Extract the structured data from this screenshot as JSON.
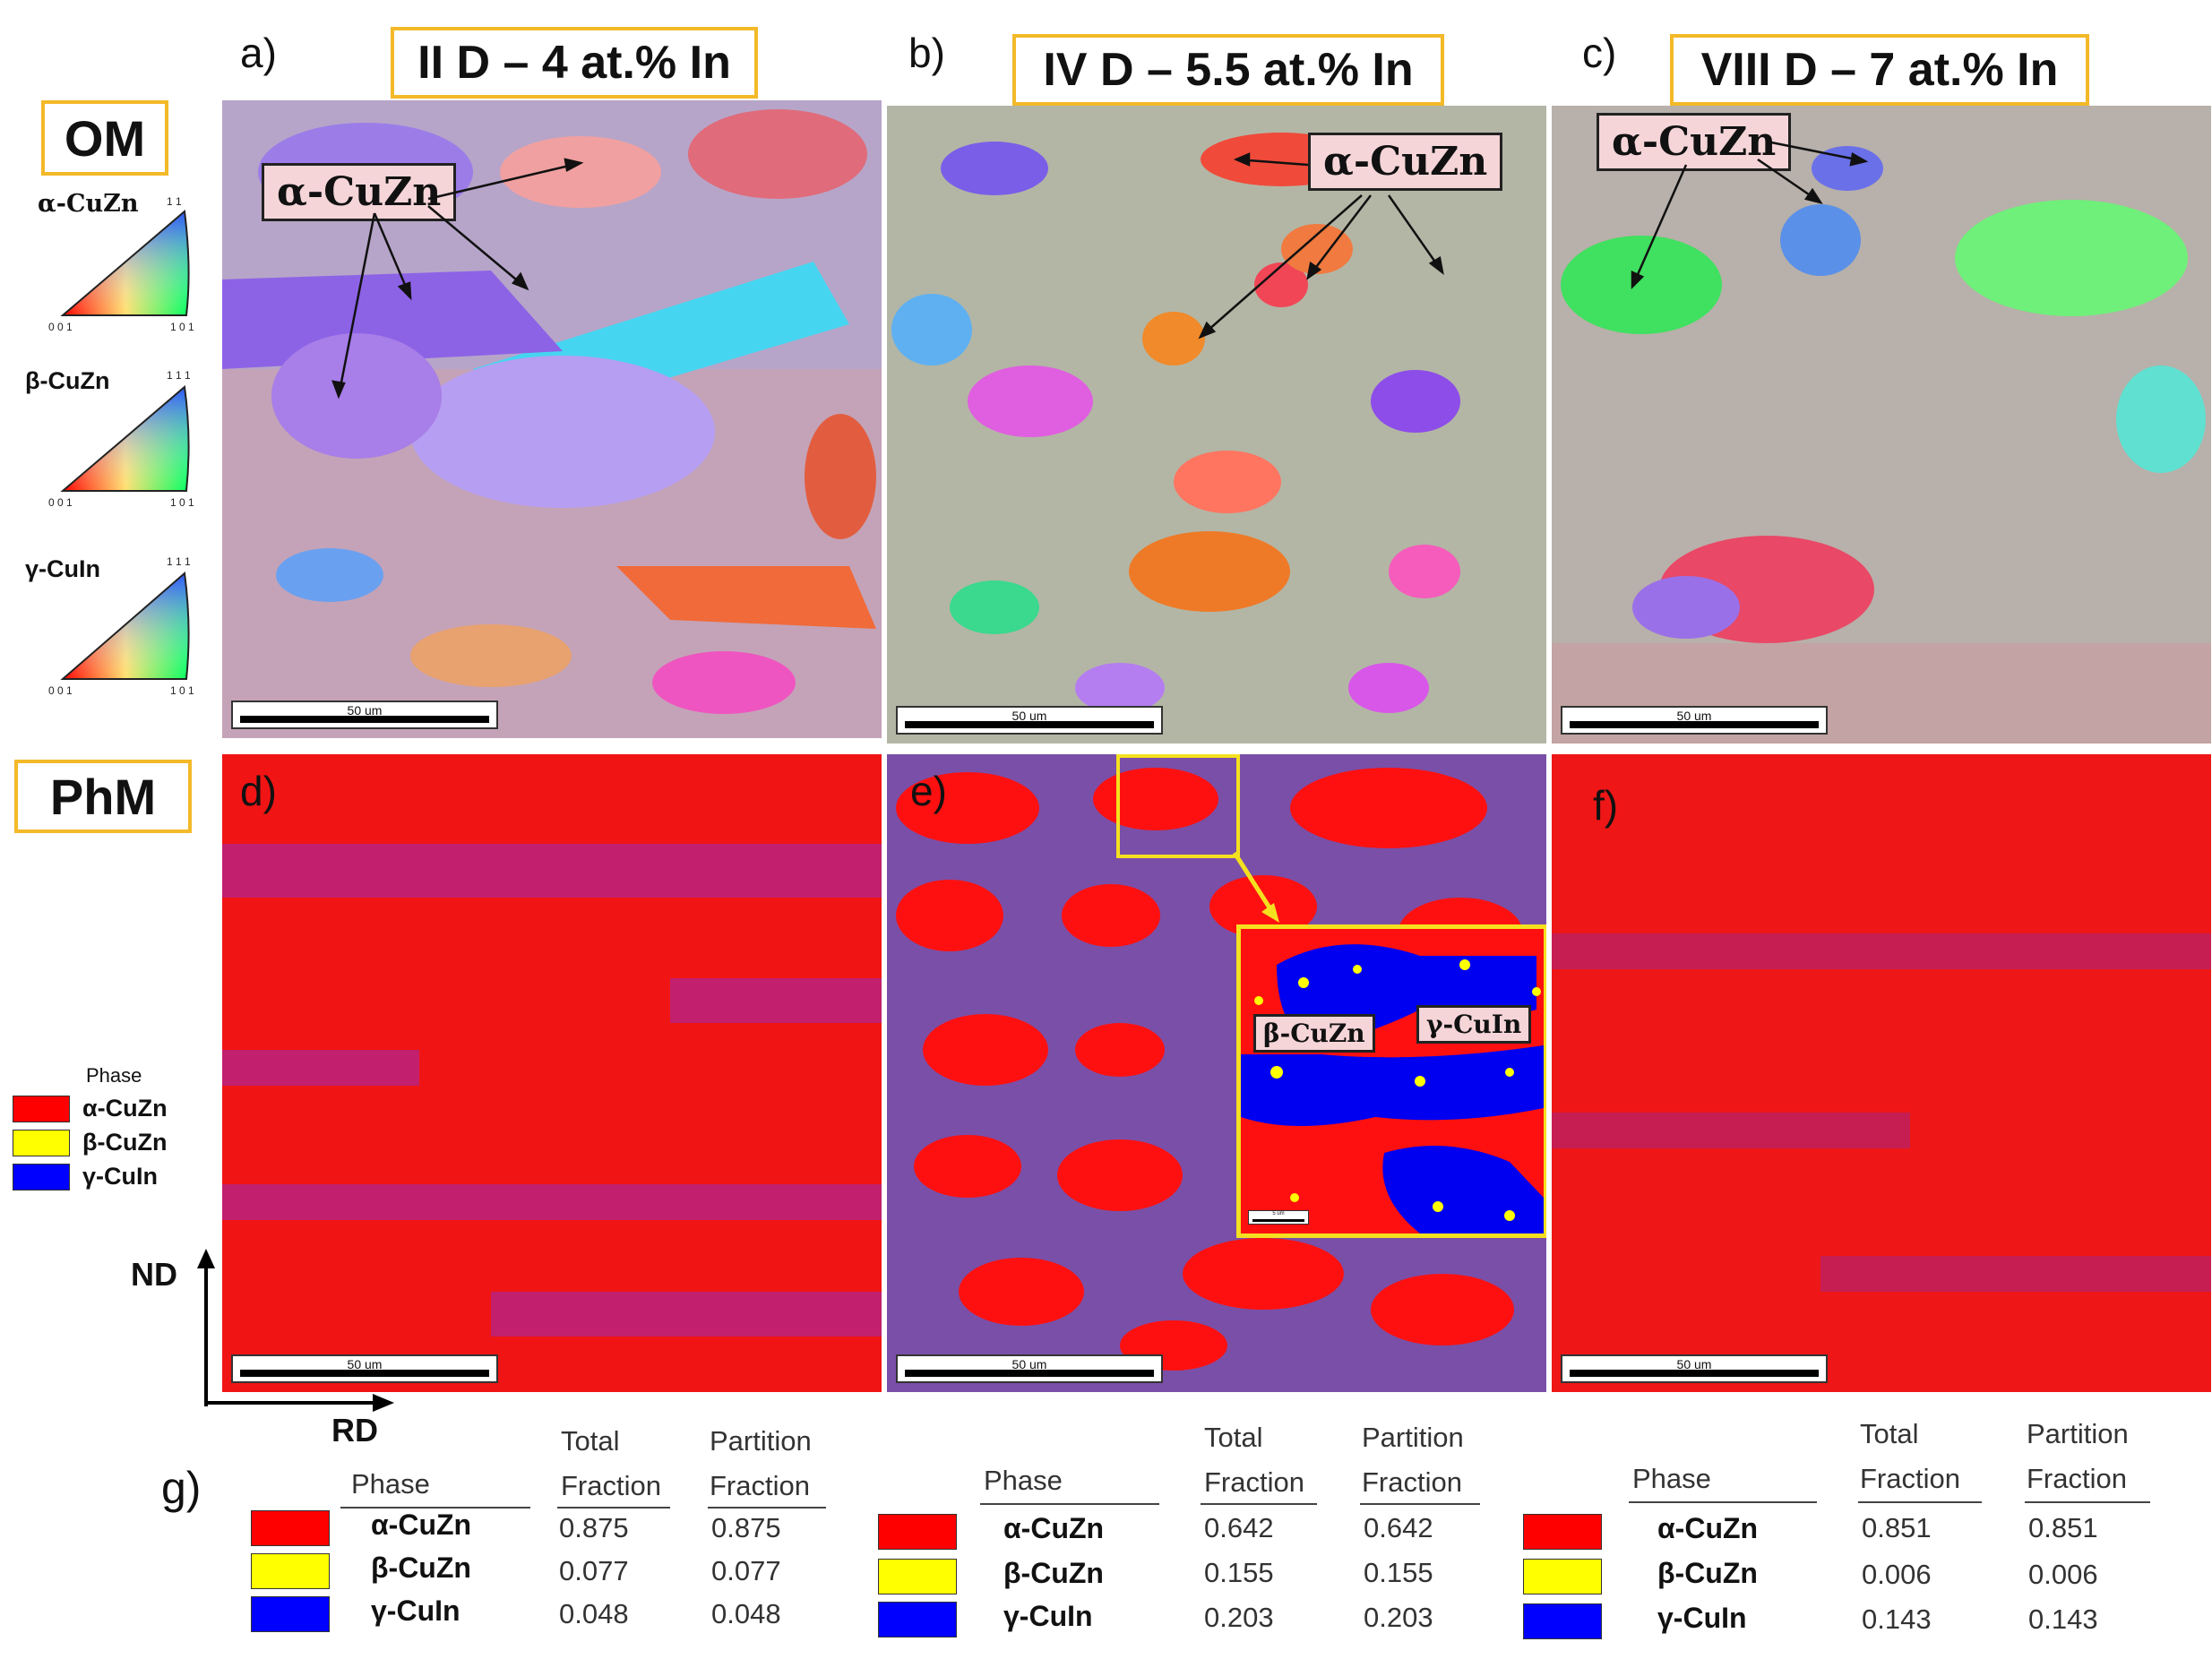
{
  "columns": [
    {
      "letter": "a)",
      "title": "II D – 4 at.% In"
    },
    {
      "letter": "b)",
      "title": "IV D – 5.5 at.% In"
    },
    {
      "letter": "c)",
      "title": "VIII D – 7 at.% In"
    }
  ],
  "rows": {
    "om": "OM",
    "phm": "PhM"
  },
  "phm_letters": [
    "d)",
    "e)",
    "f)"
  ],
  "ipf": [
    {
      "name": "α-CuZn",
      "top": "1 1",
      "left": "0 0 1",
      "right": "1 0 1"
    },
    {
      "name": "β-CuZn",
      "top": "1 1 1",
      "left": "0 0 1",
      "right": "1 0 1"
    },
    {
      "name": "γ-CuIn",
      "top": "1 1 1",
      "left": "0 0 1",
      "right": "1 0 1"
    }
  ],
  "scalebar": "50 um",
  "inset_scalebar": "5 um",
  "annotations": {
    "alpha": "α-CuZn",
    "beta": "β-CuZn",
    "gamma": "γ-CuIn"
  },
  "phase_legend": {
    "title": "Phase",
    "items": [
      {
        "name": "α-CuZn",
        "color": "#ff0000"
      },
      {
        "name": "β-CuZn",
        "color": "#ffff00"
      },
      {
        "name": "γ-CuIn",
        "color": "#0000ff"
      }
    ]
  },
  "axes": {
    "nd": "ND",
    "rd": "RD"
  },
  "table": {
    "letter": "g)",
    "header_phase": "Phase",
    "header_total": [
      "Total",
      "Fraction"
    ],
    "header_partition": [
      "Partition",
      "Fraction"
    ],
    "blocks": [
      {
        "rows": [
          {
            "phase": "α-CuZn",
            "total": "0.875",
            "partition": "0.875"
          },
          {
            "phase": "β-CuZn",
            "total": "0.077",
            "partition": "0.077"
          },
          {
            "phase": "γ-CuIn",
            "total": "0.048",
            "partition": "0.048"
          }
        ]
      },
      {
        "rows": [
          {
            "phase": "α-CuZn",
            "total": "0.642",
            "partition": "0.642"
          },
          {
            "phase": "β-CuZn",
            "total": "0.155",
            "partition": "0.155"
          },
          {
            "phase": "γ-CuIn",
            "total": "0.203",
            "partition": "0.203"
          }
        ]
      },
      {
        "rows": [
          {
            "phase": "α-CuZn",
            "total": "0.851",
            "partition": "0.851"
          },
          {
            "phase": "β-CuZn",
            "total": "0.006",
            "partition": "0.006"
          },
          {
            "phase": "γ-CuIn",
            "total": "0.143",
            "partition": "0.143"
          }
        ]
      }
    ]
  },
  "colors": {
    "alpha": "#ff0000",
    "beta": "#ffff00",
    "gamma": "#0000ff",
    "label_border": "#f3b928",
    "annot_bg": "#f5d5d8"
  }
}
